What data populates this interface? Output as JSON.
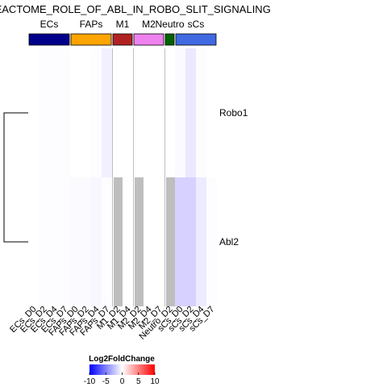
{
  "chart_data": {
    "type": "heatmap",
    "title": "REACTOME_ROLE_OF_ABL_IN_ROBO_SLIT_SIGNALING",
    "rows": [
      "Robo1",
      "Abl2"
    ],
    "columns": [
      "ECs_D0",
      "ECs_D2",
      "ECs_D4",
      "ECs_D7",
      "FAPs_D0",
      "FAPs_D2",
      "FAPs_D4",
      "FAPs_D7",
      "M1_D2",
      "M1_D4",
      "M2_D2",
      "M2_D4",
      "M2_D7",
      "Neutro_D2",
      "sCs_D0",
      "sCs_D2",
      "sCs_D4",
      "sCs_D7"
    ],
    "values": [
      [
        0.0,
        0.1,
        0.1,
        0.1,
        0.0,
        0.0,
        0.1,
        0.6,
        null,
        0.0,
        null,
        0.0,
        0.0,
        null,
        0.2,
        0.9,
        0.1,
        0.0
      ],
      [
        0.0,
        0.1,
        0.1,
        0.1,
        0.2,
        0.2,
        0.3,
        0.1,
        null,
        0.0,
        null,
        0.0,
        0.0,
        null,
        1.8,
        1.8,
        0.8,
        0.1
      ]
    ],
    "missing_color": "#bebebe",
    "groups": [
      {
        "name": "ECs",
        "color": "#00008b",
        "columns": [
          0,
          3
        ]
      },
      {
        "name": "FAPs",
        "color": "#ffa500",
        "columns": [
          4,
          7
        ]
      },
      {
        "name": "M1",
        "color": "#b22222",
        "columns": [
          8,
          9
        ]
      },
      {
        "name": "M2",
        "color": "#ee82ee",
        "columns": [
          10,
          12
        ]
      },
      {
        "name": "Neutro",
        "color": "#006400",
        "columns": [
          13,
          13
        ]
      },
      {
        "name": "sCs",
        "color": "#4169e1",
        "columns": [
          14,
          17
        ]
      }
    ],
    "dendrogram": "rows",
    "legend": {
      "title": "Log2FoldChange",
      "ticks": [
        -10,
        -5,
        0,
        5,
        10
      ],
      "range": [
        -10,
        10
      ],
      "colors": [
        "#0000ff",
        "#ffffff",
        "#ff0000"
      ],
      "placement": "bottom-center"
    }
  }
}
